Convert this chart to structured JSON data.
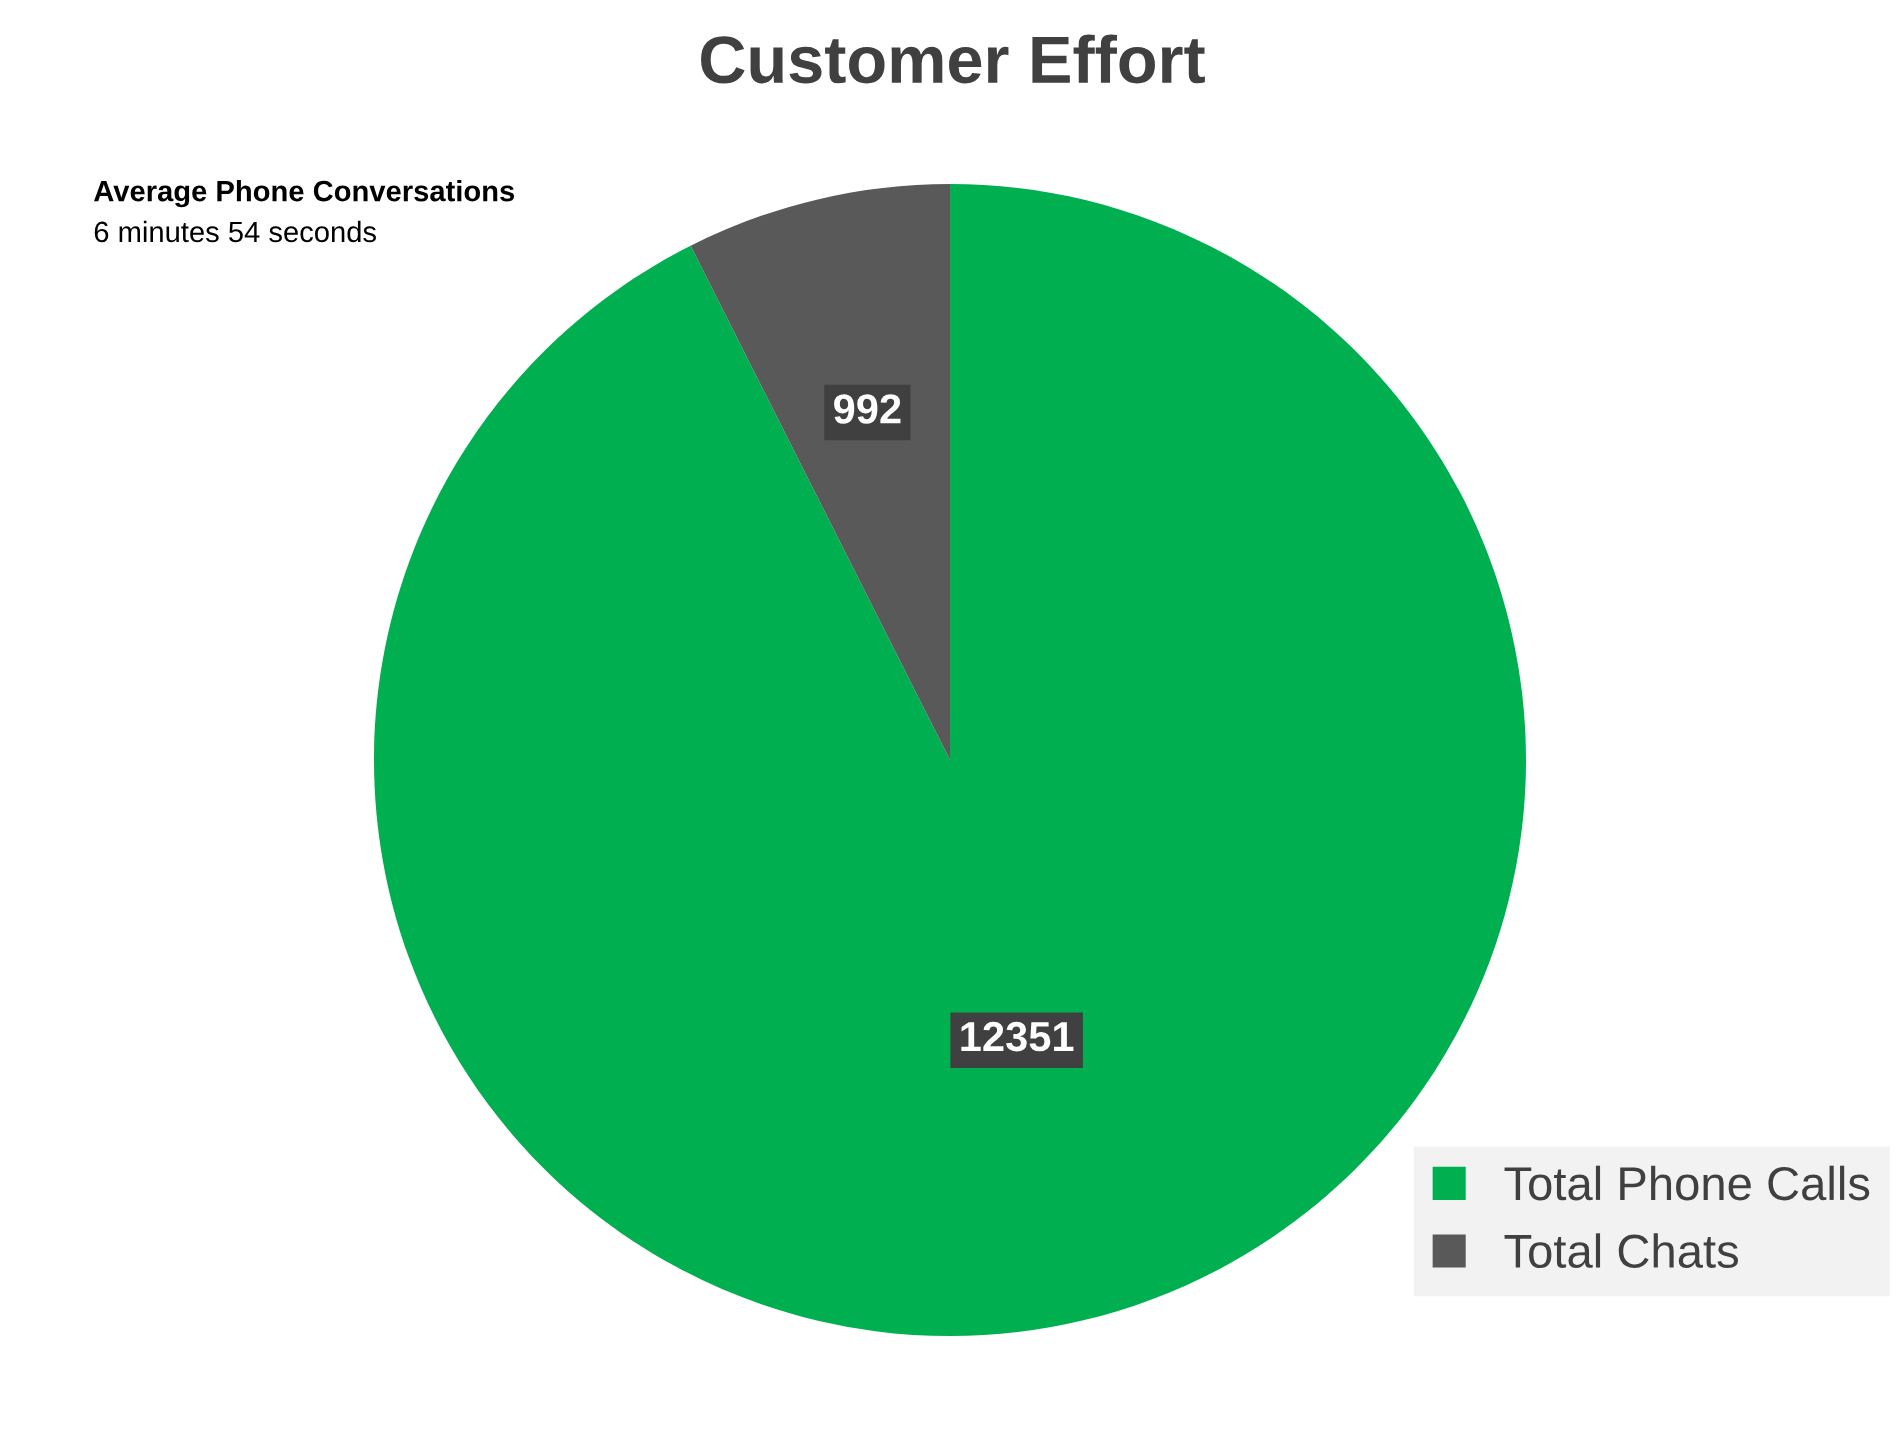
{
  "chart_data": {
    "type": "pie",
    "title": "Customer Effort",
    "categories": [
      "Total Phone Calls",
      "Total Chats"
    ],
    "values": [
      12351,
      992
    ],
    "colors": [
      "#00b050",
      "#595959"
    ],
    "data_labels": true,
    "legend": "bottom right",
    "annotations": [
      "Average Phone Conversations",
      "6 minutes 54 seconds"
    ]
  }
}
